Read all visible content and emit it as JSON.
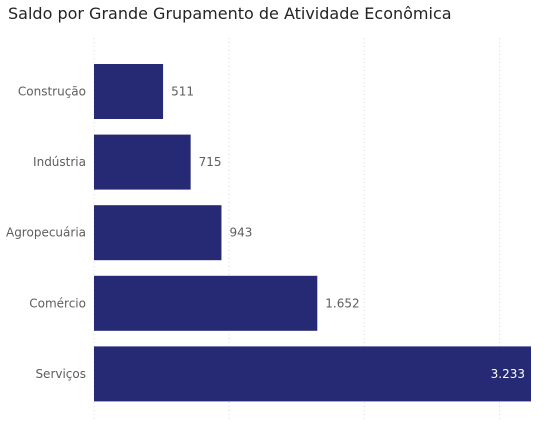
{
  "chart_data": {
    "type": "bar",
    "orientation": "horizontal",
    "title": "Saldo por Grande Grupamento de Atividade Econômica",
    "categories": [
      "Construção",
      "Indústria",
      "Agropecuária",
      "Comércio",
      "Serviços"
    ],
    "values": [
      511,
      715,
      943,
      1652,
      3233
    ],
    "data_labels": [
      "511",
      "715",
      "943",
      "1.652",
      "3.233"
    ],
    "xlim": [
      0,
      3233
    ],
    "grid": true,
    "bar_color": "#262a75",
    "label_color_outside": "#605e5c",
    "label_color_inside": "#ffffff"
  }
}
